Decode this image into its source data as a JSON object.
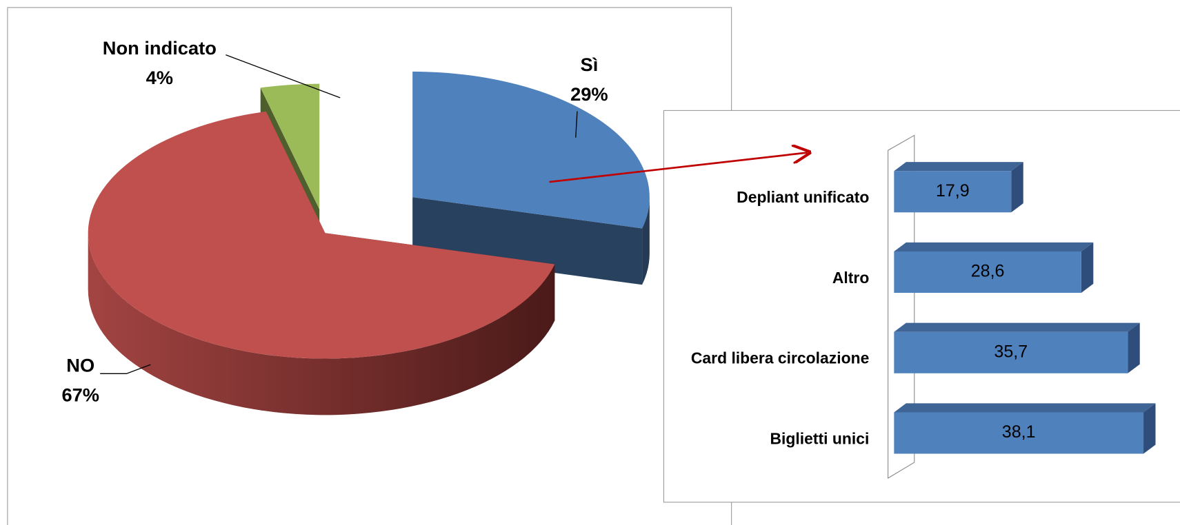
{
  "chart_data": [
    {
      "type": "pie",
      "categories": [
        "Sì",
        "NO",
        "Non indicato"
      ],
      "values": [
        29,
        67,
        4
      ],
      "value_labels": [
        "29%",
        "67%",
        "4%"
      ],
      "colors": [
        "#4f81bd",
        "#c0504d",
        "#9bbb59"
      ]
    },
    {
      "type": "bar",
      "orientation": "horizontal",
      "categories": [
        "Depliant unificato",
        "Altro",
        "Card libera circolazione",
        "Biglietti unici"
      ],
      "values": [
        17.9,
        28.6,
        35.7,
        38.1
      ],
      "value_labels": [
        "17,9",
        "28,6",
        "35,7",
        "38,1"
      ],
      "color": "#4f81bd",
      "xlim": [
        0,
        40
      ]
    }
  ]
}
